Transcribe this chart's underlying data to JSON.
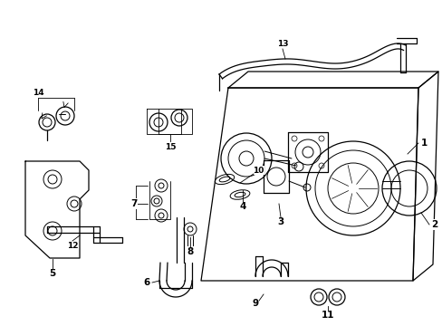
{
  "background_color": "#ffffff",
  "line_color": "#000000",
  "figsize": [
    4.89,
    3.6
  ],
  "dpi": 100,
  "lw": 0.9,
  "tlw": 0.7
}
